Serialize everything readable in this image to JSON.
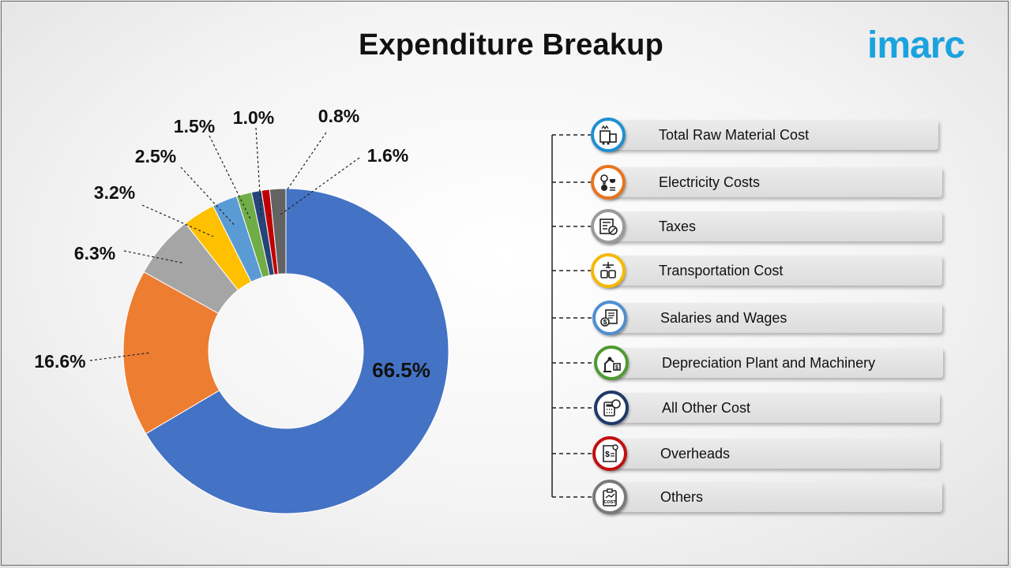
{
  "title": "Expenditure Breakup",
  "brand": "imarc",
  "colors": {
    "brand": "#1ba3df",
    "leader": "#222222",
    "center": "#ffffff"
  },
  "chart_data": {
    "type": "pie",
    "variant": "donut",
    "title": "Expenditure Breakup",
    "legend_placement": "right",
    "slices": [
      {
        "name": "Total Raw Material Cost",
        "value": 66.5,
        "label": "66.5%",
        "color": "#4472c4"
      },
      {
        "name": "Electricity Costs",
        "value": 16.6,
        "label": "16.6%",
        "color": "#ed7d31"
      },
      {
        "name": "Taxes",
        "value": 6.3,
        "label": "6.3%",
        "color": "#a5a5a5"
      },
      {
        "name": "Transportation Cost",
        "value": 3.2,
        "label": "3.2%",
        "color": "#ffc000"
      },
      {
        "name": "Salaries and Wages",
        "value": 2.5,
        "label": "2.5%",
        "color": "#5b9bd5"
      },
      {
        "name": "Depreciation Plant and Machinery",
        "value": 1.5,
        "label": "1.5%",
        "color": "#70ad47"
      },
      {
        "name": "All Other Cost",
        "value": 1.0,
        "label": "1.0%",
        "color": "#264478"
      },
      {
        "name": "Overheads",
        "value": 0.8,
        "label": "0.8%",
        "color": "#c00000"
      },
      {
        "name": "Others",
        "value": 1.6,
        "label": "1.6%",
        "color": "#636363"
      }
    ]
  },
  "legend": {
    "items": [
      {
        "label": "Total Raw Material Cost",
        "icon": "raw-material-icon",
        "ring": "#1f8fd1"
      },
      {
        "label": "Electricity Costs",
        "icon": "electricity-icon",
        "ring": "#e9731e"
      },
      {
        "label": "Taxes",
        "icon": "taxes-icon",
        "ring": "#9a9a9a"
      },
      {
        "label": "Transportation Cost",
        "icon": "transportation-icon",
        "ring": "#f6b800"
      },
      {
        "label": "Salaries and Wages",
        "icon": "salaries-icon",
        "ring": "#4f8fd0"
      },
      {
        "label": "Depreciation Plant and Machinery",
        "icon": "machinery-icon",
        "ring": "#4f9a31"
      },
      {
        "label": "All Other Cost",
        "icon": "calculator-icon",
        "ring": "#1e3a68"
      },
      {
        "label": "Overheads",
        "icon": "overheads-icon",
        "ring": "#c01010"
      },
      {
        "label": "Others",
        "icon": "cost-clipboard-icon",
        "ring": "#7a7a7a"
      }
    ]
  }
}
